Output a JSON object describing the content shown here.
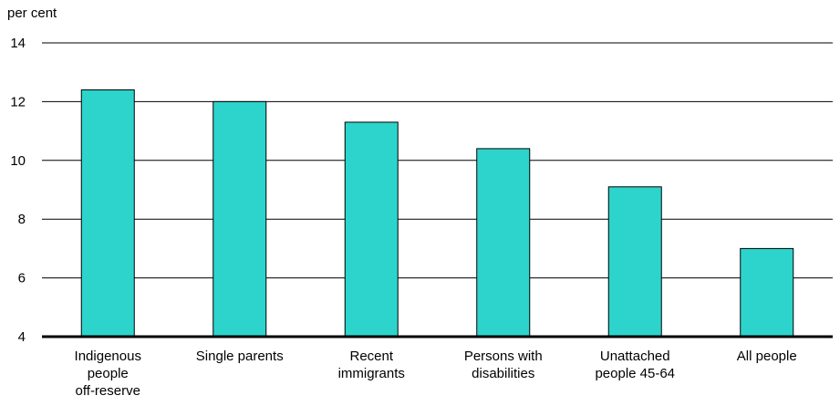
{
  "chart_data": {
    "type": "bar",
    "title": "",
    "ylabel": "per cent",
    "xlabel": "",
    "ylim": [
      4,
      14
    ],
    "yticks": [
      4,
      6,
      8,
      10,
      12,
      14
    ],
    "grid": true,
    "legend": "none",
    "categories": [
      [
        "Indigenous",
        "people",
        "off-reserve"
      ],
      [
        "Single parents"
      ],
      [
        "Recent",
        "immigrants"
      ],
      [
        "Persons with",
        "disabilities"
      ],
      [
        "Unattached",
        "people 45-64"
      ],
      [
        "All people"
      ]
    ],
    "values": [
      12.4,
      12.0,
      11.3,
      10.4,
      9.1,
      7.0
    ],
    "colors": {
      "bar": "#2dd4cc",
      "bar_outline": "#000000",
      "grid": "#000000",
      "axis": "#000000"
    }
  }
}
